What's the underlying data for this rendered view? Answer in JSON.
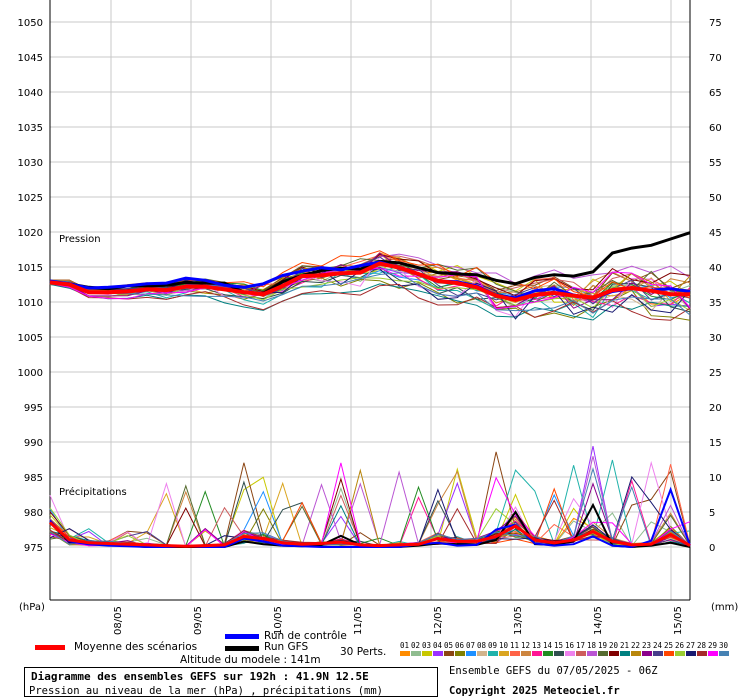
{
  "chart_data": {
    "type": "line",
    "xlabel_date_unit": "",
    "left_axis_unit": "(hPa)",
    "right_axis_unit": "(mm)",
    "left_ticks": [
      975,
      980,
      985,
      990,
      995,
      1000,
      1005,
      1010,
      1015,
      1020,
      1025,
      1030,
      1035,
      1040,
      1045,
      1050
    ],
    "right_ticks": [
      0,
      5,
      10,
      15,
      20,
      25,
      30,
      35,
      40,
      45,
      50,
      55,
      60,
      65,
      70,
      75
    ],
    "left_range": [
      975,
      1050
    ],
    "right_range": [
      0,
      75
    ],
    "x_labels": [
      "08/05",
      "09/05",
      "10/05",
      "11/05",
      "12/05",
      "13/05",
      "14/05",
      "15/05"
    ],
    "grid": true,
    "panel_labels": {
      "pressure": "Pression",
      "precip": "Précipitations"
    },
    "x_steps": 33,
    "series": [
      {
        "name": "Moyenne des scénarios",
        "color": "#ff0000",
        "pressure": [
          1012.8,
          1012.5,
          1011.4,
          1011.4,
          1011.5,
          1011.8,
          1011.7,
          1012.2,
          1012.2,
          1011.8,
          1011.4,
          1011.1,
          1012.3,
          1013.7,
          1013.8,
          1014.1,
          1014.2,
          1015.5,
          1014.9,
          1014.0,
          1013.0,
          1012.7,
          1012.1,
          1010.9,
          1010.3,
          1011.0,
          1011.3,
          1010.9,
          1010.6,
          1011.7,
          1012.0,
          1011.6,
          1011.1,
          1011.1
        ],
        "precip": [
          3.5,
          1.0,
          0.6,
          0.5,
          0.4,
          0.3,
          0.2,
          0.1,
          0.2,
          0.3,
          1.5,
          1.2,
          0.6,
          0.4,
          0.5,
          0.7,
          0.3,
          0.2,
          0.3,
          0.4,
          1.2,
          0.8,
          0.8,
          1.5,
          3.0,
          1.0,
          0.6,
          1.0,
          2.2,
          0.8,
          0.3,
          0.4,
          1.8,
          0.2
        ]
      },
      {
        "name": "Run de contrôle",
        "color": "#0000ff",
        "pressure": [
          1013.0,
          1012.6,
          1012.0,
          1012.1,
          1012.3,
          1012.6,
          1012.7,
          1013.4,
          1013.1,
          1012.4,
          1012.1,
          1012.6,
          1013.8,
          1014.4,
          1014.9,
          1014.6,
          1015.2,
          1015.7,
          1014.9,
          1013.9,
          1013.0,
          1012.9,
          1012.3,
          1011.0,
          1010.6,
          1011.6,
          1011.9,
          1011.0,
          1010.5,
          1011.5,
          1011.9,
          1011.7,
          1011.9,
          1011.5
        ],
        "precip": [
          3.8,
          0.8,
          0.4,
          0.2,
          0.1,
          0.0,
          0.0,
          0.1,
          0.0,
          0.0,
          1.2,
          0.8,
          0.2,
          0.1,
          0.0,
          0.0,
          0.0,
          0.0,
          0.0,
          0.4,
          0.6,
          0.2,
          0.3,
          2.5,
          3.2,
          0.5,
          0.2,
          0.4,
          1.5,
          0.2,
          0.0,
          0.9,
          8.2,
          0.2
        ]
      },
      {
        "name": "Run GFS",
        "color": "#000000",
        "pressure": [
          1012.9,
          1012.6,
          1012.1,
          1011.9,
          1012.3,
          1012.3,
          1012.4,
          1012.8,
          1012.7,
          1012.7,
          1011.4,
          1011.2,
          1012.9,
          1013.8,
          1014.5,
          1014.8,
          1014.7,
          1015.8,
          1015.6,
          1014.9,
          1014.2,
          1014.0,
          1013.9,
          1013.1,
          1012.6,
          1013.5,
          1013.9,
          1013.7,
          1014.3,
          1017.0,
          1017.7,
          1018.1,
          1019.0,
          1019.9
        ],
        "precip": [
          3.5,
          0.7,
          0.6,
          0.4,
          0.2,
          0.0,
          0.0,
          0.0,
          0.0,
          0.0,
          0.8,
          0.4,
          0.2,
          0.1,
          0.3,
          1.6,
          0.3,
          0.0,
          0.0,
          0.2,
          0.5,
          0.4,
          0.3,
          1.0,
          5.0,
          0.4,
          0.3,
          0.8,
          6.0,
          0.2,
          0.0,
          0.2,
          0.6,
          0.0
        ]
      }
    ]
  },
  "legend": {
    "mean_label": "Moyenne des scénarios",
    "control_label": "Run de contrôle",
    "gfs_label": "Run GFS",
    "perts_label": "30 Perts.",
    "altitude_label": "Altitude du modele : 141m",
    "pert_numbers": [
      "01",
      "02",
      "03",
      "04",
      "05",
      "06",
      "07",
      "08",
      "09",
      "10",
      "11",
      "12",
      "13",
      "14",
      "15",
      "16",
      "17",
      "18",
      "19",
      "20",
      "21",
      "22",
      "23",
      "24",
      "25",
      "26",
      "27",
      "28",
      "29",
      "30"
    ],
    "pert_colors": [
      "#ff8c00",
      "#8fbc8f",
      "#c8c800",
      "#9b30ff",
      "#8b4513",
      "#808000",
      "#1e90ff",
      "#d2b48c",
      "#20b2aa",
      "#daa520",
      "#ff6347",
      "#cd853f",
      "#ff1493",
      "#228b22",
      "#2f4f4f",
      "#ee82ee",
      "#cd5c5c",
      "#ba55d3",
      "#556b2f",
      "#800000",
      "#008080",
      "#b8860b",
      "#8b008b",
      "#483d8b",
      "#ff4500",
      "#9acd32",
      "#191970",
      "#a52a2a",
      "#ff00ff",
      "#4682b4"
    ]
  },
  "info": {
    "title": "Diagramme des ensembles GEFS sur 192h : 41.9N 12.5E",
    "subtitle": "Pression au niveau de la mer (hPa) , précipitations (mm)",
    "run_label": "Ensemble GEFS du 07/05/2025 - 06Z",
    "copyright": "Copyright 2025 Meteociel.fr"
  }
}
